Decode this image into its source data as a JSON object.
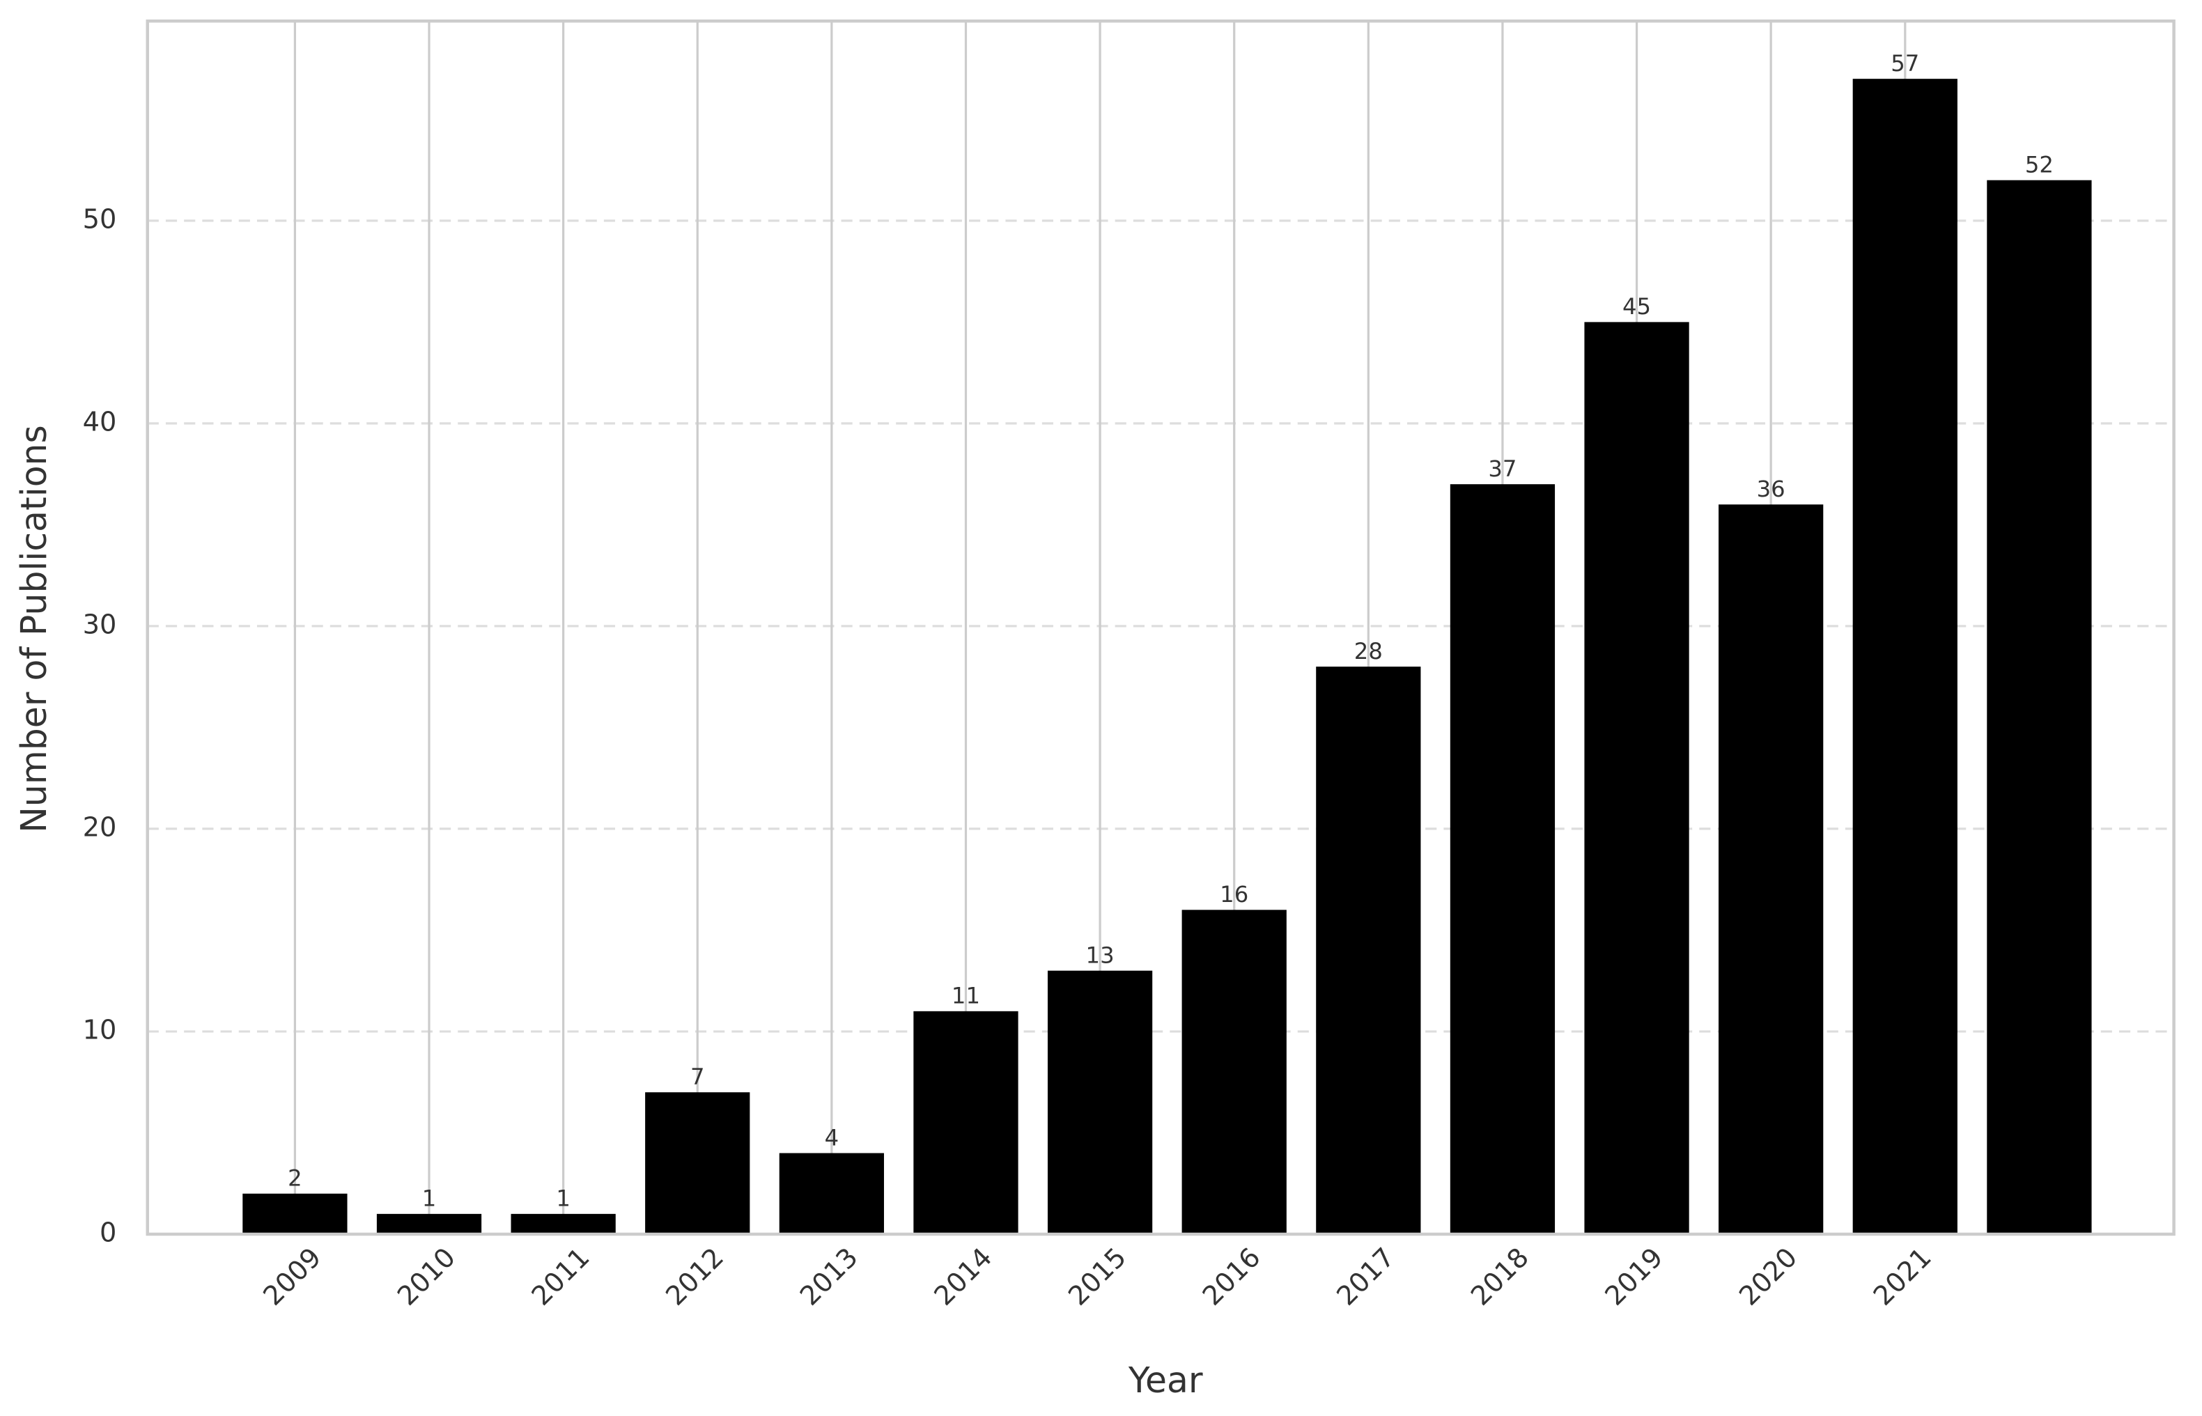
{
  "chart_data": {
    "type": "bar",
    "xlabel": "Year",
    "ylabel": "Number of Publications",
    "categories": [
      "2009",
      "2010",
      "2011",
      "2012",
      "2013",
      "2014",
      "2015",
      "2016",
      "2017",
      "2018",
      "2019",
      "2020",
      "2021",
      null
    ],
    "values": [
      2,
      1,
      1,
      7,
      4,
      11,
      13,
      16,
      28,
      37,
      45,
      36,
      57,
      52
    ],
    "color": "#000000",
    "ylim": [
      0,
      59.85
    ],
    "yticks": [
      0,
      10,
      20,
      30,
      40,
      50
    ],
    "grid": true
  }
}
